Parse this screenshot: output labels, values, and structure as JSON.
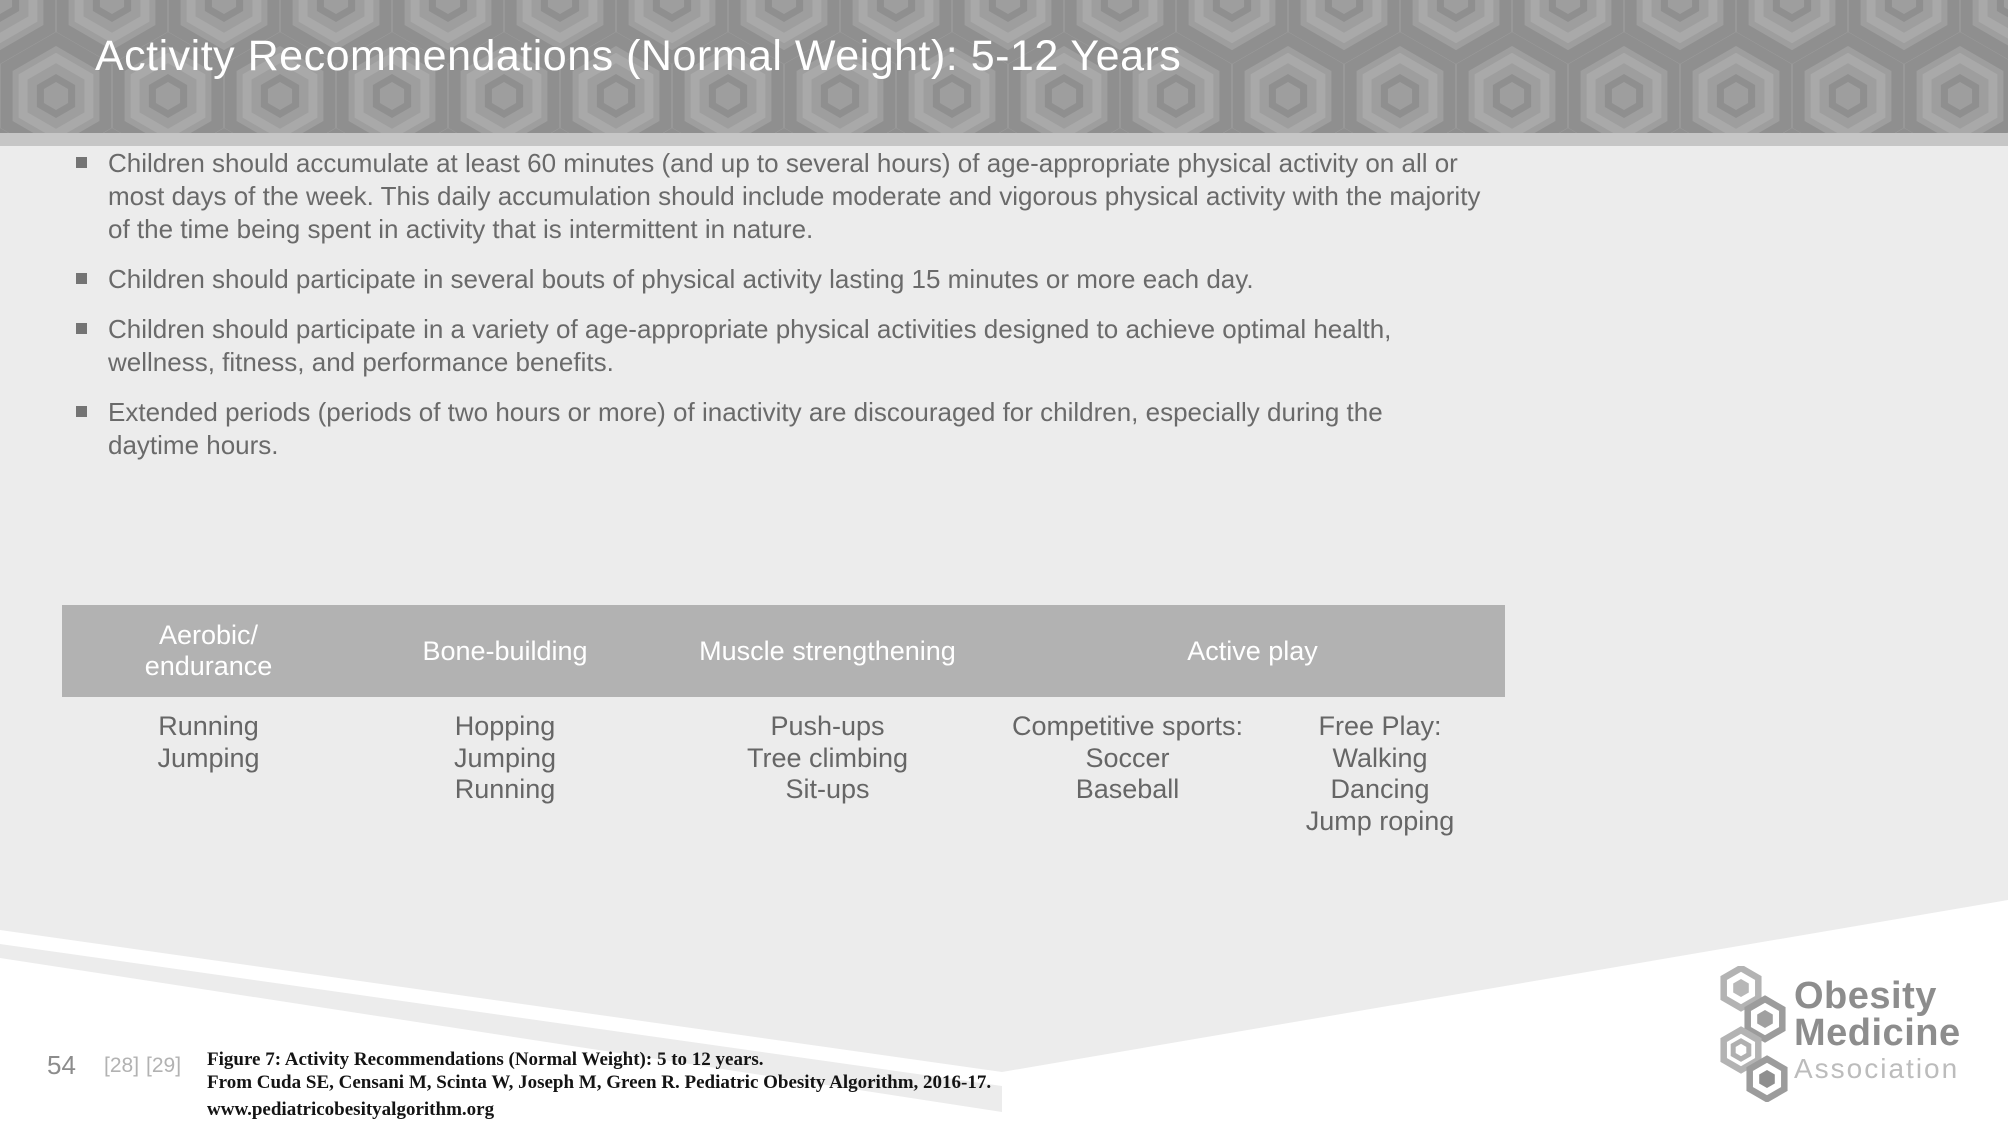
{
  "slide": {
    "title": "Activity Recommendations (Normal Weight): 5-12 Years",
    "bullets": [
      {
        "lines": [
          "Children should accumulate at least 60 minutes (and up to several hours) of age-appropriate physical activity on all or",
          "most days of the week. This daily accumulation should include moderate and vigorous physical activity with the majority",
          "of the time being spent in activity that is intermittent in nature."
        ]
      },
      {
        "lines": [
          "Children should participate in several bouts of physical activity lasting 15 minutes or more each day."
        ]
      },
      {
        "lines": [
          "Children should participate in a variety of age-appropriate physical activities designed to achieve optimal health,",
          "wellness, fitness, and performance benefits."
        ]
      },
      {
        "lines": [
          "Extended periods (periods of two hours or more) of inactivity are discouraged for children, especially during the",
          "daytime hours."
        ]
      }
    ],
    "table": {
      "headers": [
        {
          "lines": [
            "Aerobic/",
            "endurance"
          ]
        },
        {
          "lines": [
            "Bone-building"
          ]
        },
        {
          "lines": [
            "Muscle strengthening"
          ]
        },
        {
          "lines": [
            "Active play"
          ]
        }
      ],
      "body_columns": [
        [
          "Running",
          "Jumping"
        ],
        [
          "Hopping",
          "Jumping",
          "Running"
        ],
        [
          "Push-ups",
          "Tree climbing",
          "Sit-ups"
        ],
        [
          "Competitive sports:",
          "Soccer",
          "Baseball"
        ],
        [
          "Free Play:",
          "Walking",
          "Dancing",
          "Jump roping"
        ]
      ]
    },
    "footer": {
      "page_number": "54",
      "references": [
        "[28]",
        "[29]"
      ],
      "caption_lines": [
        "Figure 7: Activity Recommendations (Normal Weight): 5 to 12 years.",
        "From Cuda SE, Censani M, Scinta W, Joseph M, Green R. Pediatric Obesity Algorithm, 2016-17.",
        "www.pediatricobesityalgorithm.org"
      ]
    },
    "logo": {
      "line1": "Obesity",
      "line2": "Medicine",
      "line3": "Association"
    },
    "colors": {
      "header_pattern_base": "#9e9e9e",
      "header_pattern_dark": "#8f8f8f",
      "header_pattern_light": "#a9a9a9",
      "title_text": "#ffffff",
      "divider_strip": "#c6c6c6",
      "content_background": "#ececec",
      "body_text": "#6a6a6a",
      "table_header_background": "#b2b2b2",
      "table_header_text": "#ffffff",
      "table_body_text": "#666666",
      "page_number_text": "#8c8c8c",
      "reference_text": "#b2b2b2",
      "caption_text": "#141414",
      "logo_gray": "#8d8d8d",
      "logo_light_gray": "#bcbcbc"
    }
  }
}
